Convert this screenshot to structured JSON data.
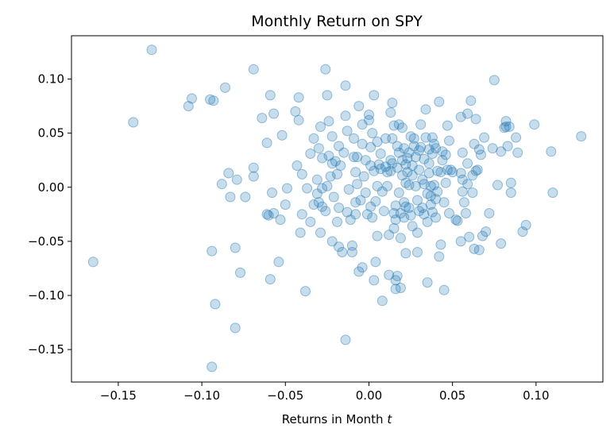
{
  "chart_data": {
    "type": "scatter",
    "title": "Monthly Return on SPY",
    "xlabel_main": "Returns in Month ",
    "xlabel_italic": "t",
    "ylabel": "",
    "xlim": [
      -0.178,
      0.14
    ],
    "ylim": [
      -0.18,
      0.14
    ],
    "xticks": [
      -0.15,
      -0.1,
      -0.05,
      0.0,
      0.05,
      0.1
    ],
    "xtick_labels": [
      "−0.15",
      "−0.10",
      "−0.05",
      "0.00",
      "0.05",
      "0.10"
    ],
    "yticks": [
      -0.15,
      -0.1,
      -0.05,
      0.0,
      0.05,
      0.1
    ],
    "ytick_labels": [
      "−0.15",
      "−0.10",
      "−0.05",
      "0.00",
      "0.05",
      "0.10"
    ],
    "marker_color": "#1f77b4",
    "marker_alpha": 0.25,
    "grid": false,
    "points": [
      [
        -0.13,
        0.127
      ],
      [
        -0.165,
        -0.069
      ],
      [
        -0.141,
        0.06
      ],
      [
        -0.106,
        0.082
      ],
      [
        -0.108,
        0.075
      ],
      [
        -0.095,
        0.081
      ],
      [
        -0.093,
        0.08
      ],
      [
        -0.086,
        0.092
      ],
      [
        -0.069,
        0.109
      ],
      [
        -0.094,
        -0.059
      ],
      [
        -0.08,
        -0.056
      ],
      [
        -0.084,
        0.013
      ],
      [
        -0.083,
        -0.009
      ],
      [
        -0.088,
        0.003
      ],
      [
        -0.079,
        0.007
      ],
      [
        -0.074,
        -0.009
      ],
      [
        -0.069,
        0.018
      ],
      [
        -0.069,
        0.01
      ],
      [
        -0.077,
        -0.079
      ],
      [
        -0.092,
        -0.108
      ],
      [
        -0.08,
        -0.13
      ],
      [
        -0.094,
        -0.166
      ],
      [
        -0.059,
        0.085
      ],
      [
        -0.057,
        0.068
      ],
      [
        -0.052,
        0.048
      ],
      [
        -0.061,
        0.041
      ],
      [
        -0.064,
        0.064
      ],
      [
        -0.058,
        -0.005
      ],
      [
        -0.057,
        -0.024
      ],
      [
        -0.053,
        -0.03
      ],
      [
        -0.06,
        -0.026
      ],
      [
        -0.061,
        -0.025
      ],
      [
        -0.049,
        -0.001
      ],
      [
        -0.05,
        -0.016
      ],
      [
        -0.054,
        -0.069
      ],
      [
        -0.059,
        -0.085
      ],
      [
        -0.042,
        0.062
      ],
      [
        -0.042,
        0.083
      ],
      [
        -0.044,
        0.07
      ],
      [
        -0.043,
        0.02
      ],
      [
        -0.04,
        0.012
      ],
      [
        -0.037,
        -0.001
      ],
      [
        -0.04,
        -0.025
      ],
      [
        -0.035,
        -0.032
      ],
      [
        -0.033,
        -0.016
      ],
      [
        -0.041,
        -0.042
      ],
      [
        -0.038,
        -0.096
      ],
      [
        -0.035,
        0.031
      ],
      [
        -0.033,
        0.045
      ],
      [
        -0.03,
        0.036
      ],
      [
        -0.031,
        0.007
      ],
      [
        -0.029,
        0.056
      ],
      [
        -0.028,
        0.027
      ],
      [
        -0.031,
        -0.006
      ],
      [
        -0.03,
        -0.014
      ],
      [
        -0.028,
        -0.001
      ],
      [
        -0.025,
        0.001
      ],
      [
        -0.026,
        -0.022
      ],
      [
        -0.028,
        -0.018
      ],
      [
        -0.029,
        -0.042
      ],
      [
        -0.026,
        0.109
      ],
      [
        -0.025,
        0.085
      ],
      [
        -0.024,
        0.061
      ],
      [
        -0.022,
        0.047
      ],
      [
        -0.024,
        0.029
      ],
      [
        -0.022,
        0.022
      ],
      [
        -0.02,
        0.024
      ],
      [
        -0.023,
        0.01
      ],
      [
        -0.021,
        -0.009
      ],
      [
        -0.018,
        -0.019
      ],
      [
        -0.019,
        -0.032
      ],
      [
        -0.022,
        -0.05
      ],
      [
        -0.018,
        -0.055
      ],
      [
        -0.016,
        -0.06
      ],
      [
        -0.019,
        0.012
      ],
      [
        -0.018,
        0.038
      ],
      [
        -0.017,
        0.02
      ],
      [
        -0.015,
        0.032
      ],
      [
        -0.014,
        0.066
      ],
      [
        -0.013,
        0.052
      ],
      [
        -0.014,
        0.094
      ],
      [
        -0.012,
        -0.002
      ],
      [
        -0.013,
        -0.023
      ],
      [
        -0.011,
        -0.03
      ],
      [
        -0.01,
        -0.054
      ],
      [
        -0.01,
        -0.06
      ],
      [
        -0.014,
        -0.141
      ],
      [
        -0.009,
        0.028
      ],
      [
        -0.008,
        0.014
      ],
      [
        -0.009,
        0.045
      ],
      [
        -0.007,
        0.028
      ],
      [
        -0.007,
        0.003
      ],
      [
        -0.008,
        -0.014
      ],
      [
        -0.008,
        -0.025
      ],
      [
        -0.005,
        -0.012
      ],
      [
        -0.006,
        -0.078
      ],
      [
        -0.004,
        -0.074
      ],
      [
        -0.006,
        0.075
      ],
      [
        -0.004,
        0.04
      ],
      [
        -0.004,
        0.058
      ],
      [
        -0.003,
        0.01
      ],
      [
        -0.002,
        0.025
      ],
      [
        -0.002,
        -0.005
      ],
      [
        -0.001,
        -0.025
      ],
      [
        0.0,
        0.067
      ],
      [
        0.0,
        0.062
      ],
      [
        0.001,
        0.037
      ],
      [
        0.001,
        0.02
      ],
      [
        0.001,
        -0.018
      ],
      [
        0.002,
        0.05
      ],
      [
        0.002,
        -0.028
      ],
      [
        0.003,
        0.085
      ],
      [
        0.003,
        0.015
      ],
      [
        0.004,
        -0.013
      ],
      [
        0.005,
        -0.045
      ],
      [
        0.004,
        -0.069
      ],
      [
        0.003,
        -0.086
      ],
      [
        0.005,
        0.042
      ],
      [
        0.005,
        0.001
      ],
      [
        0.006,
        0.021
      ],
      [
        0.007,
        0.031
      ],
      [
        0.007,
        0.017
      ],
      [
        0.008,
        -0.004
      ],
      [
        0.009,
        -0.022
      ],
      [
        0.008,
        -0.105
      ],
      [
        0.01,
        0.045
      ],
      [
        0.01,
        0.019
      ],
      [
        0.011,
        0.014
      ],
      [
        0.011,
        0.001
      ],
      [
        0.012,
        -0.044
      ],
      [
        0.012,
        -0.081
      ],
      [
        0.013,
        0.025
      ],
      [
        0.013,
        0.015
      ],
      [
        0.014,
        0.022
      ],
      [
        0.014,
        0.045
      ],
      [
        0.013,
        0.069
      ],
      [
        0.014,
        0.078
      ],
      [
        0.015,
        0.057
      ],
      [
        0.015,
        -0.024
      ],
      [
        0.015,
        -0.038
      ],
      [
        0.016,
        -0.017
      ],
      [
        0.016,
        -0.03
      ],
      [
        0.016,
        -0.086
      ],
      [
        0.016,
        -0.094
      ],
      [
        0.017,
        -0.082
      ],
      [
        0.017,
        0.038
      ],
      [
        0.017,
        0.018
      ],
      [
        0.018,
        0.032
      ],
      [
        0.018,
        0.058
      ],
      [
        0.018,
        -0.005
      ],
      [
        0.019,
        -0.024
      ],
      [
        0.019,
        -0.047
      ],
      [
        0.019,
        -0.093
      ],
      [
        0.02,
        0.011
      ],
      [
        0.02,
        0.025
      ],
      [
        0.02,
        0.055
      ],
      [
        0.021,
        0.036
      ],
      [
        0.021,
        -0.014
      ],
      [
        0.021,
        -0.028
      ],
      [
        0.022,
        0.021
      ],
      [
        0.022,
        0.004
      ],
      [
        0.022,
        -0.018
      ],
      [
        0.022,
        -0.061
      ],
      [
        0.023,
        0.027
      ],
      [
        0.023,
        0.014
      ],
      [
        0.024,
        0.032
      ],
      [
        0.024,
        -0.019
      ],
      [
        0.024,
        0.002
      ],
      [
        0.025,
        0.047
      ],
      [
        0.025,
        -0.026
      ],
      [
        0.026,
        0.011
      ],
      [
        0.026,
        0.02
      ],
      [
        0.026,
        -0.036
      ],
      [
        0.027,
        0.045
      ],
      [
        0.027,
        0.038
      ],
      [
        0.028,
        0.028
      ],
      [
        0.028,
        0.001
      ],
      [
        0.029,
        -0.012
      ],
      [
        0.029,
        -0.042
      ],
      [
        0.029,
        -0.06
      ],
      [
        0.03,
        0.034
      ],
      [
        0.03,
        0.016
      ],
      [
        0.03,
        -0.022
      ],
      [
        0.031,
        0.058
      ],
      [
        0.031,
        0.037
      ],
      [
        0.032,
        0.007
      ],
      [
        0.032,
        -0.019
      ],
      [
        0.033,
        0.026
      ],
      [
        0.033,
        0.003
      ],
      [
        0.033,
        -0.025
      ],
      [
        0.034,
        0.046
      ],
      [
        0.034,
        0.072
      ],
      [
        0.035,
        -0.006
      ],
      [
        0.035,
        -0.032
      ],
      [
        0.035,
        -0.088
      ],
      [
        0.036,
        0.035
      ],
      [
        0.036,
        0.022
      ],
      [
        0.036,
        0.013
      ],
      [
        0.037,
        0.001
      ],
      [
        0.037,
        -0.008
      ],
      [
        0.037,
        -0.016
      ],
      [
        0.038,
        0.046
      ],
      [
        0.038,
        0.031
      ],
      [
        0.038,
        -0.023
      ],
      [
        0.039,
        0.04
      ],
      [
        0.039,
        0.002
      ],
      [
        0.04,
        -0.011
      ],
      [
        0.04,
        -0.028
      ],
      [
        0.04,
        0.036
      ],
      [
        0.041,
        0.015
      ],
      [
        0.041,
        -0.004
      ],
      [
        0.042,
        -0.064
      ],
      [
        0.042,
        0.079
      ],
      [
        0.043,
        0.014
      ],
      [
        0.043,
        -0.053
      ],
      [
        0.044,
        0.033
      ],
      [
        0.044,
        0.025
      ],
      [
        0.045,
        -0.014
      ],
      [
        0.045,
        -0.095
      ],
      [
        0.046,
        0.004
      ],
      [
        0.046,
        0.03
      ],
      [
        0.047,
        0.016
      ],
      [
        0.047,
        0.057
      ],
      [
        0.048,
        -0.024
      ],
      [
        0.048,
        0.043
      ],
      [
        0.049,
        0.016
      ],
      [
        0.05,
        0.014
      ],
      [
        0.052,
        -0.03
      ],
      [
        0.053,
        -0.031
      ],
      [
        0.055,
        0.013
      ],
      [
        0.055,
        -0.05
      ],
      [
        0.055,
        0.065
      ],
      [
        0.056,
        0.032
      ],
      [
        0.056,
        -0.004
      ],
      [
        0.056,
        0.007
      ],
      [
        0.057,
        -0.014
      ],
      [
        0.058,
        -0.024
      ],
      [
        0.059,
        0.022
      ],
      [
        0.059,
        0.003
      ],
      [
        0.059,
        0.068
      ],
      [
        0.06,
        -0.046
      ],
      [
        0.061,
        0.08
      ],
      [
        0.062,
        -0.005
      ],
      [
        0.062,
        0.011
      ],
      [
        0.063,
        0.04
      ],
      [
        0.063,
        -0.057
      ],
      [
        0.064,
        0.063
      ],
      [
        0.064,
        0.015
      ],
      [
        0.065,
        0.016
      ],
      [
        0.066,
        0.035
      ],
      [
        0.066,
        -0.058
      ],
      [
        0.067,
        0.03
      ],
      [
        0.068,
        -0.045
      ],
      [
        0.069,
        0.046
      ],
      [
        0.07,
        -0.041
      ],
      [
        0.072,
        -0.024
      ],
      [
        0.074,
        0.036
      ],
      [
        0.075,
        0.099
      ],
      [
        0.077,
        0.002
      ],
      [
        0.079,
        0.033
      ],
      [
        0.079,
        -0.052
      ],
      [
        0.081,
        0.055
      ],
      [
        0.082,
        0.056
      ],
      [
        0.082,
        0.061
      ],
      [
        0.083,
        0.038
      ],
      [
        0.084,
        0.056
      ],
      [
        0.085,
        -0.005
      ],
      [
        0.085,
        0.004
      ],
      [
        0.088,
        0.046
      ],
      [
        0.089,
        0.032
      ],
      [
        0.092,
        -0.041
      ],
      [
        0.094,
        -0.035
      ],
      [
        0.099,
        0.058
      ],
      [
        0.109,
        0.033
      ],
      [
        0.11,
        -0.005
      ],
      [
        0.127,
        0.047
      ]
    ]
  }
}
